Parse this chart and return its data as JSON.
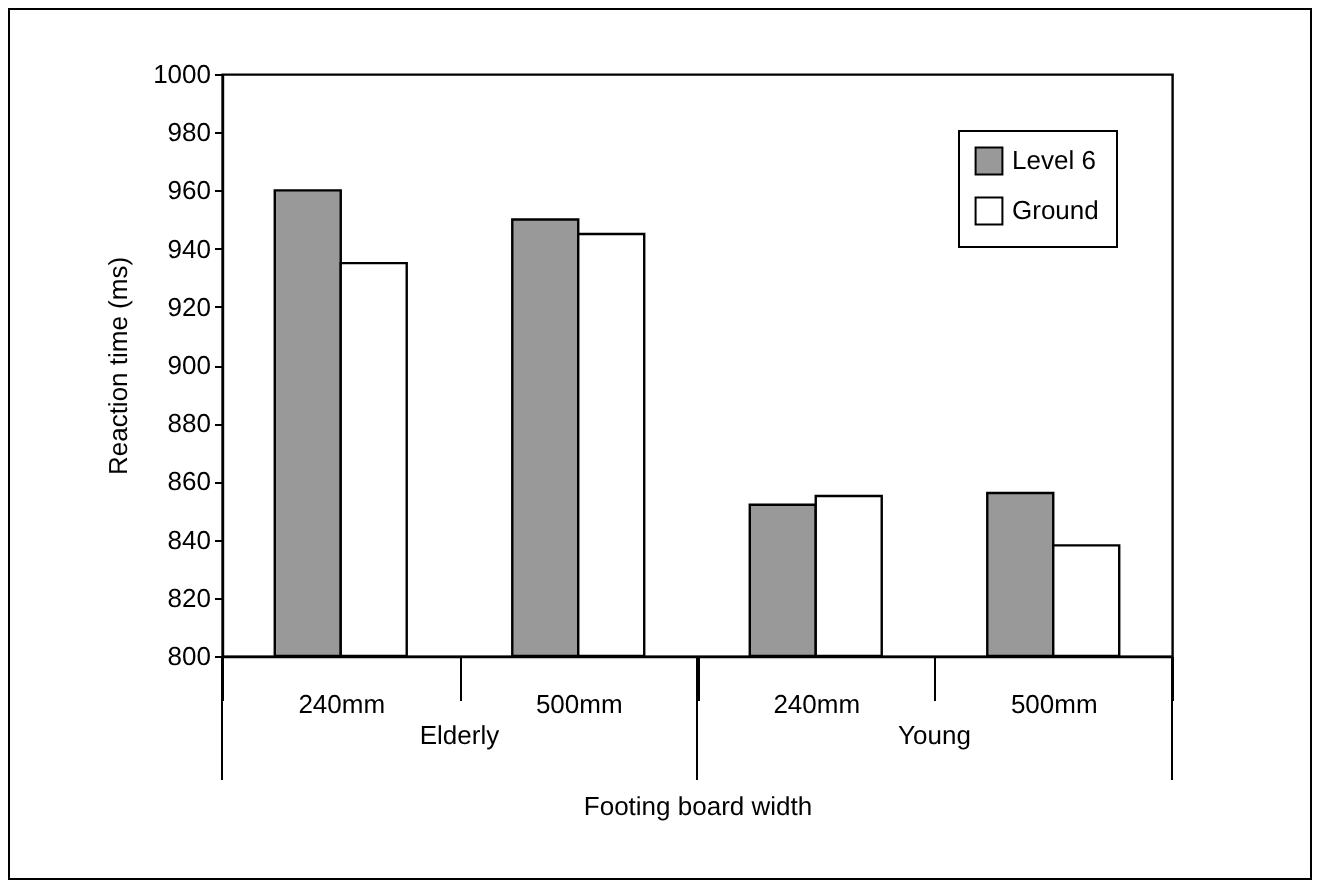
{
  "chart_data": {
    "type": "bar",
    "xlabel": "Footing board width",
    "ylabel": "Reaction time (ms)",
    "categories": [
      "240mm",
      "500mm",
      "240mm",
      "500mm"
    ],
    "annotations": [
      "Elderly",
      "Young"
    ],
    "series": [
      {
        "name": "Level 6",
        "color": "#999999",
        "values": [
          960,
          950,
          852,
          856
        ]
      },
      {
        "name": "Ground",
        "color": "#ffffff",
        "values": [
          935,
          945,
          855,
          838
        ]
      }
    ],
    "ylim": [
      800,
      1000
    ],
    "yticks": [
      800,
      820,
      840,
      860,
      880,
      900,
      920,
      940,
      960,
      980,
      1000
    ],
    "grid": false,
    "legend": "top right"
  }
}
